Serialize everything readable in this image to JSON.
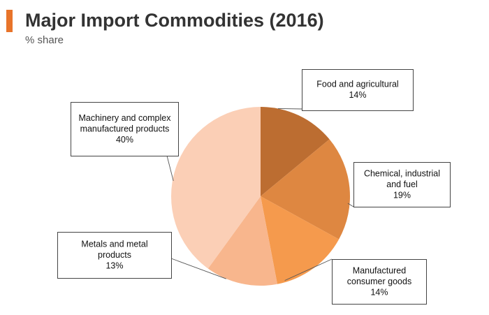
{
  "header": {
    "title": "Major Import Commodities (2016)",
    "subtitle": "% share",
    "accent_color": "#e8742a"
  },
  "chart_data": {
    "type": "pie",
    "title": "Major Import Commodities (2016)",
    "subtitle": "% share",
    "start_angle_deg": 0,
    "direction": "clockwise",
    "slices": [
      {
        "label_lines": [
          "Food and agricultural"
        ],
        "value": 14,
        "value_label": "14%",
        "color": "#bc6d31"
      },
      {
        "label_lines": [
          "Chemical, industrial",
          "and fuel"
        ],
        "value": 19,
        "value_label": "19%",
        "color": "#de8741"
      },
      {
        "label_lines": [
          "Manufactured",
          "consumer goods"
        ],
        "value": 14,
        "value_label": "14%",
        "color": "#f59a4d"
      },
      {
        "label_lines": [
          "Metals and metal",
          "products"
        ],
        "value": 13,
        "value_label": "13%",
        "color": "#f8b68d"
      },
      {
        "label_lines": [
          "Machinery and complex",
          "manufactured products"
        ],
        "value": 40,
        "value_label": "40%",
        "color": "#fbcfb6"
      }
    ]
  }
}
